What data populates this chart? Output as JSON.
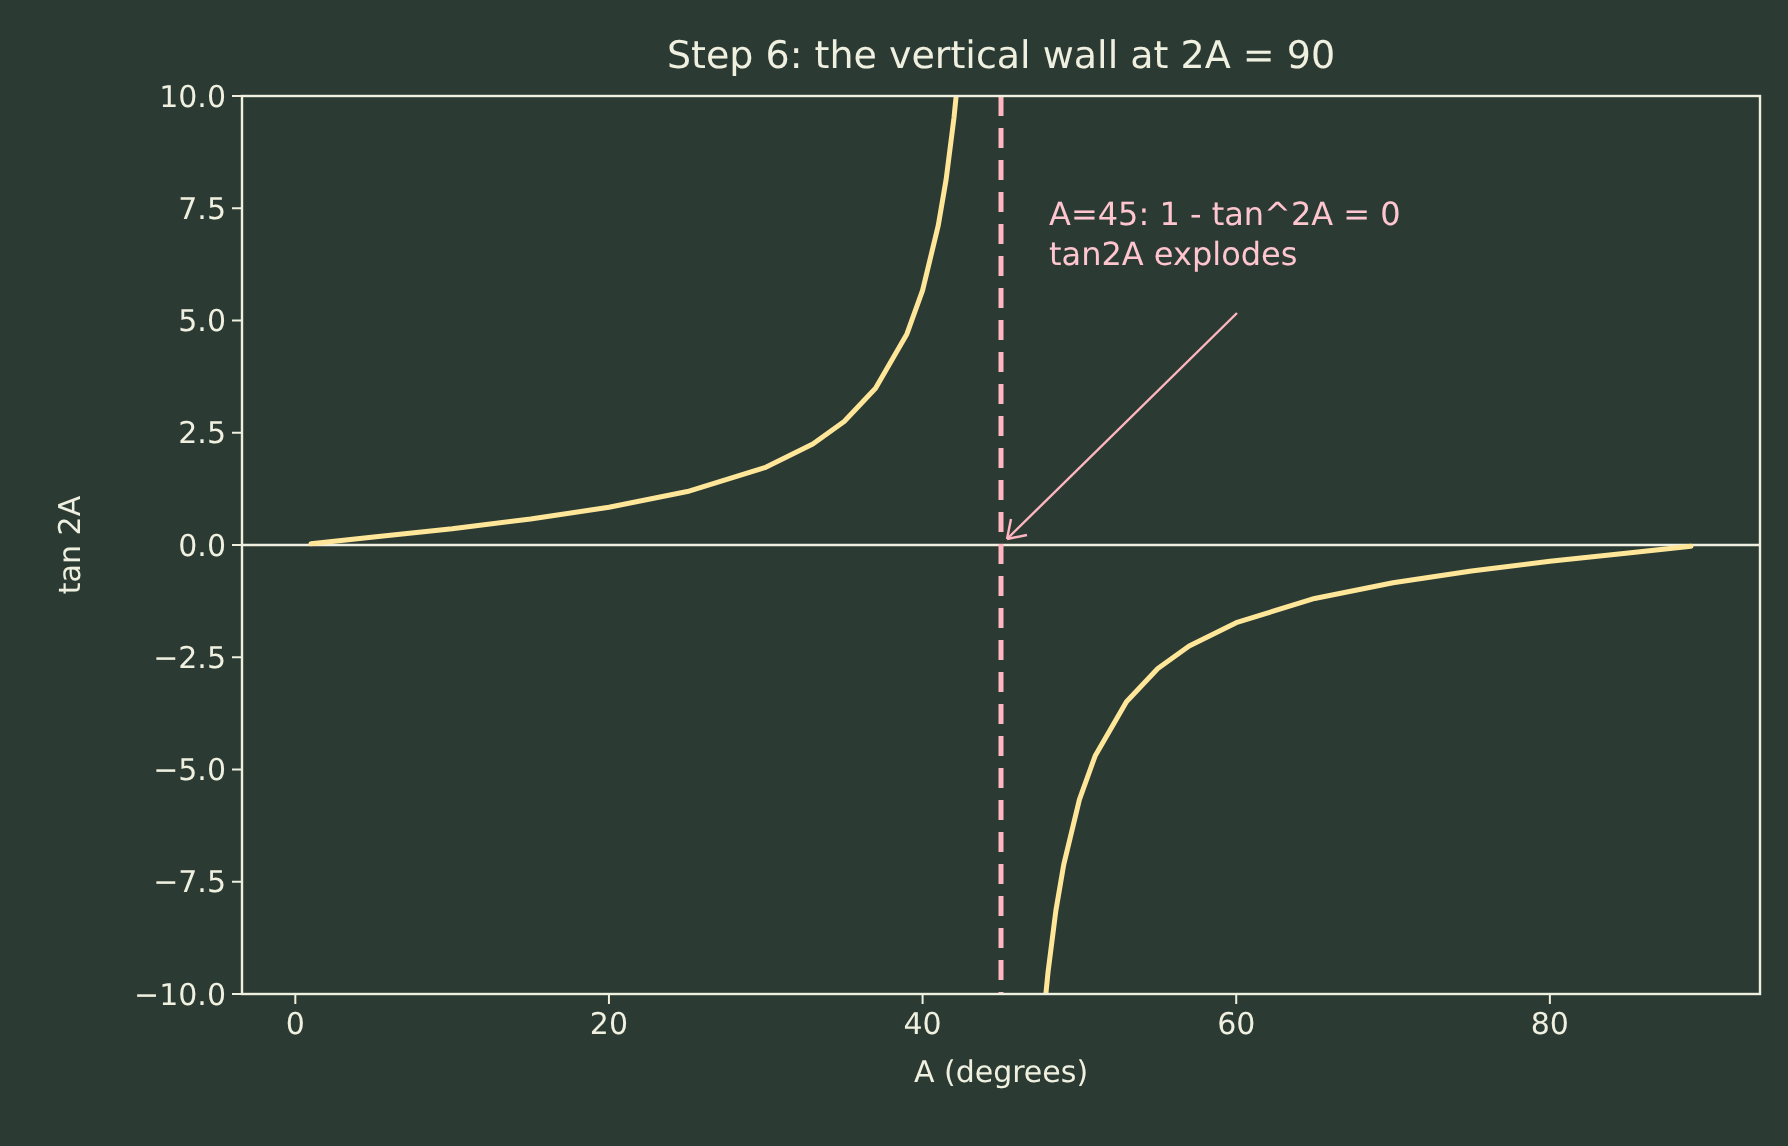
{
  "chart_data": {
    "type": "line",
    "title": "Step 6: the vertical wall at 2A = 90",
    "xlabel": "A (degrees)",
    "ylabel": "tan 2A",
    "x": [
      1,
      5,
      10,
      15,
      20,
      25,
      30,
      33,
      35,
      37,
      39,
      40,
      41,
      41.5,
      42,
      42.14,
      45,
      47.86,
      48,
      48.5,
      49,
      50,
      51,
      53,
      55,
      57,
      60,
      65,
      70,
      75,
      80,
      85,
      89
    ],
    "series": [
      {
        "color": "#ffe699",
        "values": [
          0.03,
          0.18,
          0.36,
          0.58,
          0.84,
          1.19,
          1.73,
          2.25,
          2.75,
          3.49,
          4.7,
          5.67,
          7.12,
          8.14,
          9.51,
          10,
          null,
          -10,
          -9.51,
          -8.14,
          -7.12,
          -5.67,
          -4.7,
          -3.49,
          -2.75,
          -2.25,
          -1.73,
          -1.19,
          -0.84,
          -0.58,
          -0.36,
          -0.18,
          -0.03
        ]
      }
    ],
    "xlim": [
      -3.4,
      93.4
    ],
    "xticks": [
      0,
      20,
      40,
      60,
      80
    ],
    "ylim": [
      -10,
      10
    ],
    "yticks": [
      {
        "value": -10,
        "label": "−10.0"
      },
      {
        "value": -7.5,
        "label": "−7.5"
      },
      {
        "value": -5,
        "label": "−5.0"
      },
      {
        "value": -2.5,
        "label": "−2.5"
      },
      {
        "value": 0,
        "label": "0.0"
      },
      {
        "value": 2.5,
        "label": "2.5"
      },
      {
        "value": 5,
        "label": "5.0"
      },
      {
        "value": 7.5,
        "label": "7.5"
      },
      {
        "value": 10,
        "label": "10.0"
      }
    ],
    "ref_lines": [
      {
        "axis": "y",
        "value": 0,
        "color": "#f0f0e0",
        "line_style": "solid"
      },
      {
        "axis": "x",
        "value": 45,
        "color": "#ffb6c1",
        "line_style": "dashed"
      }
    ],
    "annotations": [
      {
        "text": "A=45: 1 - tan^2A = 0\ntan2A explodes",
        "x": 45,
        "y": 0
      }
    ],
    "grid": false,
    "marker": "none",
    "line_style": "solid"
  }
}
